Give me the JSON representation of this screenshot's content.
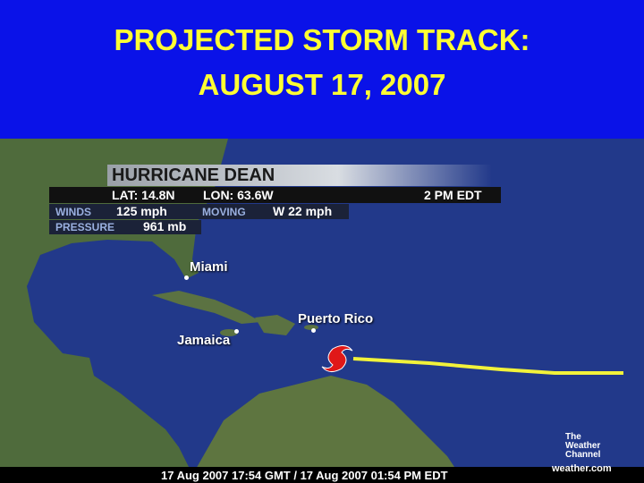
{
  "header": {
    "title_line1": "PROJECTED STORM TRACK:",
    "title_line2": "AUGUST 17, 2007"
  },
  "info_panel": {
    "storm_name": "HURRICANE DEAN",
    "latitude": "LAT: 14.8N",
    "longitude": "LON: 63.6W",
    "time": "2 PM EDT",
    "winds_label": "WINDS",
    "winds": "125 mph",
    "moving_label": "MOVING",
    "moving": "W 22 mph",
    "pressure_label": "PRESSURE",
    "pressure": "961 mb"
  },
  "map_labels": [
    "Miami",
    "Puerto Rico",
    "Jamaica"
  ],
  "logo": {
    "lines": [
      "The",
      "Weather",
      "Channel"
    ],
    "url": "weather.com"
  },
  "timestamp": "17 Aug 2007 17:54 GMT / 17 Aug 2007 01:54 PM EDT"
}
